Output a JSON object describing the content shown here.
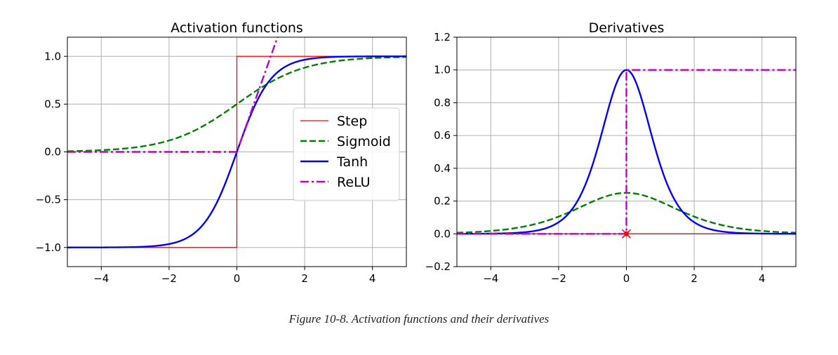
{
  "figure": {
    "caption": "Figure 10-8. Activation functions and their derivatives"
  },
  "colors": {
    "step": "#ff0000",
    "sigmoid": "#008000",
    "tanh": "#0000ff",
    "relu": "#bf00bf",
    "grid": "#b0b0b0"
  },
  "chart_data": [
    {
      "type": "line",
      "title": "Activation functions",
      "xlabel": "",
      "ylabel": "",
      "xlim": [
        -5,
        5
      ],
      "ylim": [
        -1.2,
        1.2
      ],
      "xticks": [
        -4,
        -2,
        0,
        2,
        4
      ],
      "xtick_labels": [
        "−4",
        "−2",
        "0",
        "2",
        "4"
      ],
      "yticks": [
        -1.0,
        -0.5,
        0.0,
        0.5,
        1.0
      ],
      "ytick_labels": [
        "−1.0",
        "−0.5",
        "0.0",
        "0.5",
        "1.0"
      ],
      "grid": true,
      "legend_position": "center-right",
      "series": [
        {
          "name": "Step",
          "function": "step",
          "style": "solid",
          "color": "#ff0000",
          "x": [
            -5,
            0,
            0,
            5
          ],
          "y": [
            -1,
            -1,
            1,
            1
          ]
        },
        {
          "name": "Sigmoid",
          "function": "sigmoid",
          "style": "dashed",
          "color": "#008000",
          "x": [
            -5,
            -4,
            -3,
            -2,
            -1,
            0,
            1,
            2,
            3,
            4,
            5
          ],
          "y": [
            0.007,
            0.018,
            0.047,
            0.119,
            0.269,
            0.5,
            0.731,
            0.881,
            0.953,
            0.982,
            0.993
          ]
        },
        {
          "name": "Tanh",
          "function": "tanh",
          "style": "solid",
          "color": "#0000ff",
          "x": [
            -5,
            -4,
            -3,
            -2,
            -1,
            0,
            1,
            2,
            3,
            4,
            5
          ],
          "y": [
            -1.0,
            -0.999,
            -0.995,
            -0.964,
            -0.762,
            0.0,
            0.762,
            0.964,
            0.995,
            0.999,
            1.0
          ]
        },
        {
          "name": "ReLU",
          "function": "relu",
          "style": "dashdot",
          "color": "#bf00bf",
          "x": [
            -5,
            0,
            1.2
          ],
          "y": [
            0,
            0,
            1.2
          ]
        }
      ]
    },
    {
      "type": "line",
      "title": "Derivatives",
      "xlabel": "",
      "ylabel": "",
      "xlim": [
        -5,
        5
      ],
      "ylim": [
        -0.2,
        1.2
      ],
      "xticks": [
        -4,
        -2,
        0,
        2,
        4
      ],
      "xtick_labels": [
        "−4",
        "−2",
        "0",
        "2",
        "4"
      ],
      "yticks": [
        -0.2,
        0.0,
        0.2,
        0.4,
        0.6,
        0.8,
        1.0,
        1.2
      ],
      "ytick_labels": [
        "−0.2",
        "0.0",
        "0.2",
        "0.4",
        "0.6",
        "0.8",
        "1.0",
        "1.2"
      ],
      "grid": true,
      "series": [
        {
          "function": "step_derivative",
          "style": "solid",
          "color": "#ff0000",
          "x": [
            -5,
            5
          ],
          "y": [
            0,
            0
          ]
        },
        {
          "function": "sigmoid_derivative",
          "style": "dashed",
          "color": "#008000",
          "x": [
            -5,
            -4,
            -3,
            -2,
            -1,
            0,
            1,
            2,
            3,
            4,
            5
          ],
          "y": [
            0.007,
            0.018,
            0.045,
            0.105,
            0.197,
            0.25,
            0.197,
            0.105,
            0.045,
            0.018,
            0.007
          ]
        },
        {
          "function": "tanh_derivative",
          "style": "solid",
          "color": "#0000ff",
          "x": [
            -5,
            -4,
            -3,
            -2,
            -1,
            0,
            1,
            2,
            3,
            4,
            5
          ],
          "y": [
            0.0,
            0.001,
            0.01,
            0.071,
            0.42,
            1.0,
            0.42,
            0.071,
            0.01,
            0.001,
            0.0
          ]
        },
        {
          "function": "relu_derivative",
          "style": "dashdot",
          "color": "#bf00bf",
          "x": [
            -5,
            0,
            0,
            5
          ],
          "y": [
            0,
            0,
            1,
            1
          ]
        }
      ],
      "markers": [
        {
          "x": 0,
          "y": 0,
          "symbol": "x",
          "color": "#ff0000"
        },
        {
          "x": 0,
          "y": 0,
          "symbol": "dot",
          "color": "#ff0000"
        }
      ]
    }
  ]
}
